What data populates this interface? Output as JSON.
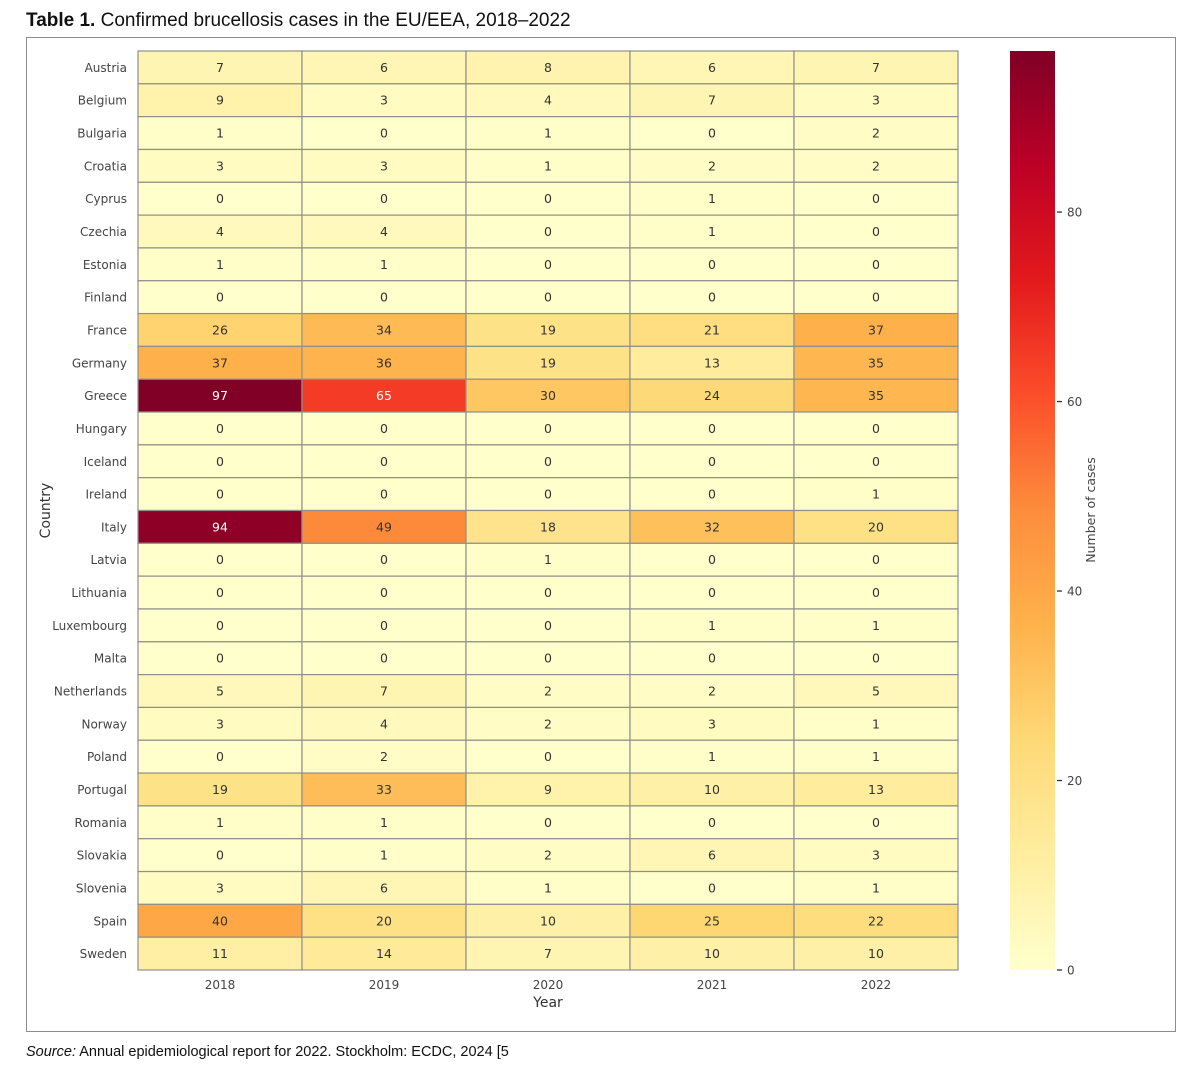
{
  "caption": {
    "label": "Table 1.",
    "text": " Confirmed brucellosis cases in the EU/EEA, 2018–2022"
  },
  "source": {
    "label": "Source:",
    "text": " Annual epidemiological report for 2022. Stockholm: ECDC, 2024 [5"
  },
  "chart_data": {
    "type": "heatmap",
    "title": "Confirmed brucellosis cases in the EU/EEA, 2018–2022",
    "xlabel": "Year",
    "ylabel": "Country",
    "colorbar_label": "Number of cases",
    "colormap": "YlOrRd",
    "color_range": [
      0,
      97
    ],
    "colorbar_ticks": [
      0,
      20,
      40,
      60,
      80
    ],
    "annotated": true,
    "x": [
      "2018",
      "2019",
      "2020",
      "2021",
      "2022"
    ],
    "y": [
      "Austria",
      "Belgium",
      "Bulgaria",
      "Croatia",
      "Cyprus",
      "Czechia",
      "Estonia",
      "Finland",
      "France",
      "Germany",
      "Greece",
      "Hungary",
      "Iceland",
      "Ireland",
      "Italy",
      "Latvia",
      "Lithuania",
      "Luxembourg",
      "Malta",
      "Netherlands",
      "Norway",
      "Poland",
      "Portugal",
      "Romania",
      "Slovakia",
      "Slovenia",
      "Spain",
      "Sweden"
    ],
    "values": [
      [
        7,
        6,
        8,
        6,
        7
      ],
      [
        9,
        3,
        4,
        7,
        3
      ],
      [
        1,
        0,
        1,
        0,
        2
      ],
      [
        3,
        3,
        1,
        2,
        2
      ],
      [
        0,
        0,
        0,
        1,
        0
      ],
      [
        4,
        4,
        0,
        1,
        0
      ],
      [
        1,
        1,
        0,
        0,
        0
      ],
      [
        0,
        0,
        0,
        0,
        0
      ],
      [
        26,
        34,
        19,
        21,
        37
      ],
      [
        37,
        36,
        19,
        13,
        35
      ],
      [
        97,
        65,
        30,
        24,
        35
      ],
      [
        0,
        0,
        0,
        0,
        0
      ],
      [
        0,
        0,
        0,
        0,
        0
      ],
      [
        0,
        0,
        0,
        0,
        1
      ],
      [
        94,
        49,
        18,
        32,
        20
      ],
      [
        0,
        0,
        1,
        0,
        0
      ],
      [
        0,
        0,
        0,
        0,
        0
      ],
      [
        0,
        0,
        0,
        1,
        1
      ],
      [
        0,
        0,
        0,
        0,
        0
      ],
      [
        5,
        7,
        2,
        2,
        5
      ],
      [
        3,
        4,
        2,
        3,
        1
      ],
      [
        0,
        2,
        0,
        1,
        1
      ],
      [
        19,
        33,
        9,
        10,
        13
      ],
      [
        1,
        1,
        0,
        0,
        0
      ],
      [
        0,
        1,
        2,
        6,
        3
      ],
      [
        3,
        6,
        1,
        0,
        1
      ],
      [
        40,
        20,
        10,
        25,
        22
      ],
      [
        11,
        14,
        7,
        10,
        10
      ]
    ]
  },
  "colors": {
    "grid_line": "#8f8f8f",
    "frame": "#8c8c8c",
    "text_dark": "#333333",
    "text_light": "#ffffff",
    "colormap_stops": [
      "#ffffcc",
      "#ffeda0",
      "#fed976",
      "#feb24c",
      "#fd8d3c",
      "#fc4e2a",
      "#e31a1c",
      "#bd0026",
      "#800026"
    ]
  }
}
